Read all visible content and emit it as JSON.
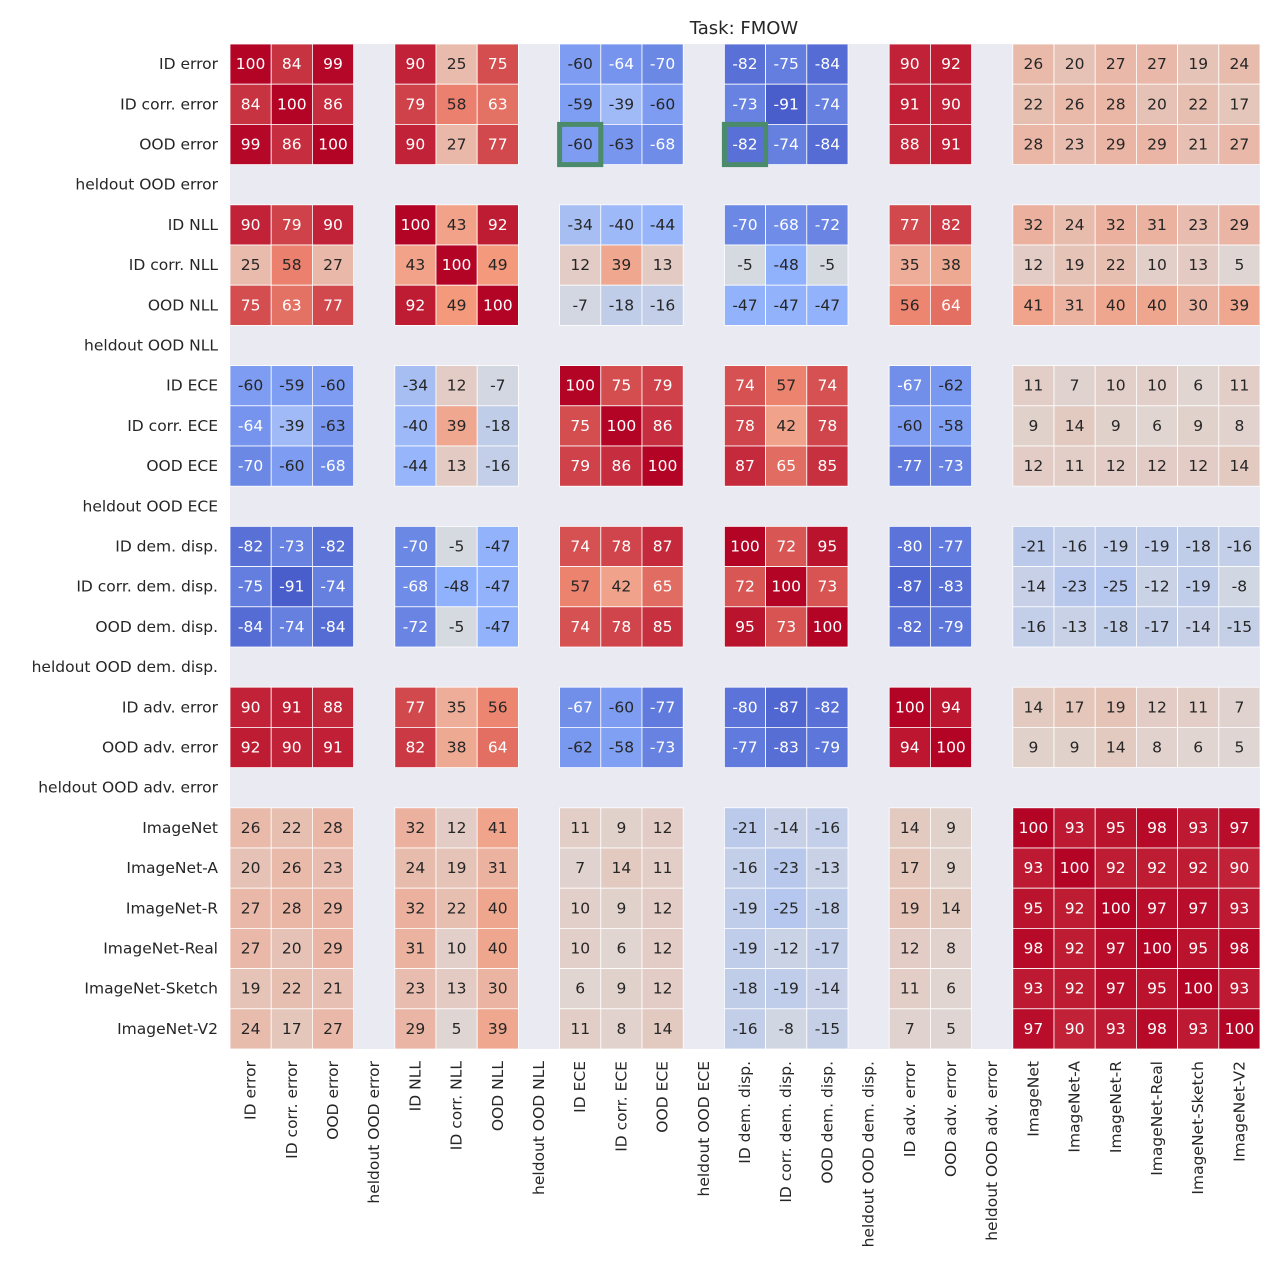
{
  "chart_data": {
    "type": "heatmap",
    "title": "Task: FMOW",
    "xlabel": "",
    "ylabel": "",
    "value_range": [
      -100,
      100
    ],
    "colormap": "coolwarm",
    "colors": {
      "background": "#eaeaf2",
      "highlight": "#4b8b6c",
      "gridline": "#ffffff"
    },
    "labels": [
      "ID error",
      "ID corr. error",
      "OOD error",
      "heldout OOD error",
      "ID NLL",
      "ID corr. NLL",
      "OOD NLL",
      "heldout OOD NLL",
      "ID ECE",
      "ID corr. ECE",
      "OOD ECE",
      "heldout OOD ECE",
      "ID dem. disp.",
      "ID corr. dem. disp.",
      "OOD dem. disp.",
      "heldout OOD dem. disp.",
      "ID adv. error",
      "OOD adv. error",
      "heldout OOD adv. error",
      "ImageNet",
      "ImageNet-A",
      "ImageNet-R",
      "ImageNet-Real",
      "ImageNet-Sketch",
      "ImageNet-V2"
    ],
    "values": [
      [
        100,
        84,
        99,
        null,
        90,
        25,
        75,
        null,
        -60,
        -64,
        -70,
        null,
        -82,
        -75,
        -84,
        null,
        90,
        92,
        null,
        26,
        20,
        27,
        27,
        19,
        24
      ],
      [
        84,
        100,
        86,
        null,
        79,
        58,
        63,
        null,
        -59,
        -39,
        -60,
        null,
        -73,
        -91,
        -74,
        null,
        91,
        90,
        null,
        22,
        26,
        28,
        20,
        22,
        17
      ],
      [
        99,
        86,
        100,
        null,
        90,
        27,
        77,
        null,
        -60,
        -63,
        -68,
        null,
        -82,
        -74,
        -84,
        null,
        88,
        91,
        null,
        28,
        23,
        29,
        29,
        21,
        27
      ],
      [
        null,
        null,
        null,
        null,
        null,
        null,
        null,
        null,
        null,
        null,
        null,
        null,
        null,
        null,
        null,
        null,
        null,
        null,
        null,
        null,
        null,
        null,
        null,
        null,
        null
      ],
      [
        90,
        79,
        90,
        null,
        100,
        43,
        92,
        null,
        -34,
        -40,
        -44,
        null,
        -70,
        -68,
        -72,
        null,
        77,
        82,
        null,
        32,
        24,
        32,
        31,
        23,
        29
      ],
      [
        25,
        58,
        27,
        null,
        43,
        100,
        49,
        null,
        12,
        39,
        13,
        null,
        -5,
        -48,
        -5,
        null,
        35,
        38,
        null,
        12,
        19,
        22,
        10,
        13,
        5
      ],
      [
        75,
        63,
        77,
        null,
        92,
        49,
        100,
        null,
        -7,
        -18,
        -16,
        null,
        -47,
        -47,
        -47,
        null,
        56,
        64,
        null,
        41,
        31,
        40,
        40,
        30,
        39
      ],
      [
        null,
        null,
        null,
        null,
        null,
        null,
        null,
        null,
        null,
        null,
        null,
        null,
        null,
        null,
        null,
        null,
        null,
        null,
        null,
        null,
        null,
        null,
        null,
        null,
        null
      ],
      [
        -60,
        -59,
        -60,
        null,
        -34,
        12,
        -7,
        null,
        100,
        75,
        79,
        null,
        74,
        57,
        74,
        null,
        -67,
        -62,
        null,
        11,
        7,
        10,
        10,
        6,
        11
      ],
      [
        -64,
        -39,
        -63,
        null,
        -40,
        39,
        -18,
        null,
        75,
        100,
        86,
        null,
        78,
        42,
        78,
        null,
        -60,
        -58,
        null,
        9,
        14,
        9,
        6,
        9,
        8
      ],
      [
        -70,
        -60,
        -68,
        null,
        -44,
        13,
        -16,
        null,
        79,
        86,
        100,
        null,
        87,
        65,
        85,
        null,
        -77,
        -73,
        null,
        12,
        11,
        12,
        12,
        12,
        14
      ],
      [
        null,
        null,
        null,
        null,
        null,
        null,
        null,
        null,
        null,
        null,
        null,
        null,
        null,
        null,
        null,
        null,
        null,
        null,
        null,
        null,
        null,
        null,
        null,
        null,
        null
      ],
      [
        -82,
        -73,
        -82,
        null,
        -70,
        -5,
        -47,
        null,
        74,
        78,
        87,
        null,
        100,
        72,
        95,
        null,
        -80,
        -77,
        null,
        -21,
        -16,
        -19,
        -19,
        -18,
        -16
      ],
      [
        -75,
        -91,
        -74,
        null,
        -68,
        -48,
        -47,
        null,
        57,
        42,
        65,
        null,
        72,
        100,
        73,
        null,
        -87,
        -83,
        null,
        -14,
        -23,
        -25,
        -12,
        -19,
        -8
      ],
      [
        -84,
        -74,
        -84,
        null,
        -72,
        -5,
        -47,
        null,
        74,
        78,
        85,
        null,
        95,
        73,
        100,
        null,
        -82,
        -79,
        null,
        -16,
        -13,
        -18,
        -17,
        -14,
        -15
      ],
      [
        null,
        null,
        null,
        null,
        null,
        null,
        null,
        null,
        null,
        null,
        null,
        null,
        null,
        null,
        null,
        null,
        null,
        null,
        null,
        null,
        null,
        null,
        null,
        null,
        null
      ],
      [
        90,
        91,
        88,
        null,
        77,
        35,
        56,
        null,
        -67,
        -60,
        -77,
        null,
        -80,
        -87,
        -82,
        null,
        100,
        94,
        null,
        14,
        17,
        19,
        12,
        11,
        7
      ],
      [
        92,
        90,
        91,
        null,
        82,
        38,
        64,
        null,
        -62,
        -58,
        -73,
        null,
        -77,
        -83,
        -79,
        null,
        94,
        100,
        null,
        9,
        9,
        14,
        8,
        6,
        5
      ],
      [
        null,
        null,
        null,
        null,
        null,
        null,
        null,
        null,
        null,
        null,
        null,
        null,
        null,
        null,
        null,
        null,
        null,
        null,
        null,
        null,
        null,
        null,
        null,
        null,
        null
      ],
      [
        26,
        22,
        28,
        null,
        32,
        12,
        41,
        null,
        11,
        9,
        12,
        null,
        -21,
        -14,
        -16,
        null,
        14,
        9,
        null,
        100,
        93,
        95,
        98,
        93,
        97
      ],
      [
        20,
        26,
        23,
        null,
        24,
        19,
        31,
        null,
        7,
        14,
        11,
        null,
        -16,
        -23,
        -13,
        null,
        17,
        9,
        null,
        93,
        100,
        92,
        92,
        92,
        90
      ],
      [
        27,
        28,
        29,
        null,
        32,
        22,
        40,
        null,
        10,
        9,
        12,
        null,
        -19,
        -25,
        -18,
        null,
        19,
        14,
        null,
        95,
        92,
        100,
        97,
        97,
        93
      ],
      [
        27,
        20,
        29,
        null,
        31,
        10,
        40,
        null,
        10,
        6,
        12,
        null,
        -19,
        -12,
        -17,
        null,
        12,
        8,
        null,
        98,
        92,
        97,
        100,
        95,
        98
      ],
      [
        19,
        22,
        21,
        null,
        23,
        13,
        30,
        null,
        6,
        9,
        12,
        null,
        -18,
        -19,
        -14,
        null,
        11,
        6,
        null,
        93,
        92,
        97,
        95,
        100,
        93
      ],
      [
        24,
        17,
        27,
        null,
        29,
        5,
        39,
        null,
        11,
        8,
        14,
        null,
        -16,
        -8,
        -15,
        null,
        7,
        5,
        null,
        97,
        90,
        93,
        98,
        93,
        100
      ]
    ],
    "highlighted_cells": [
      {
        "row": "OOD error",
        "col": "ID ECE"
      },
      {
        "row": "OOD error",
        "col": "ID dem. disp."
      }
    ]
  }
}
